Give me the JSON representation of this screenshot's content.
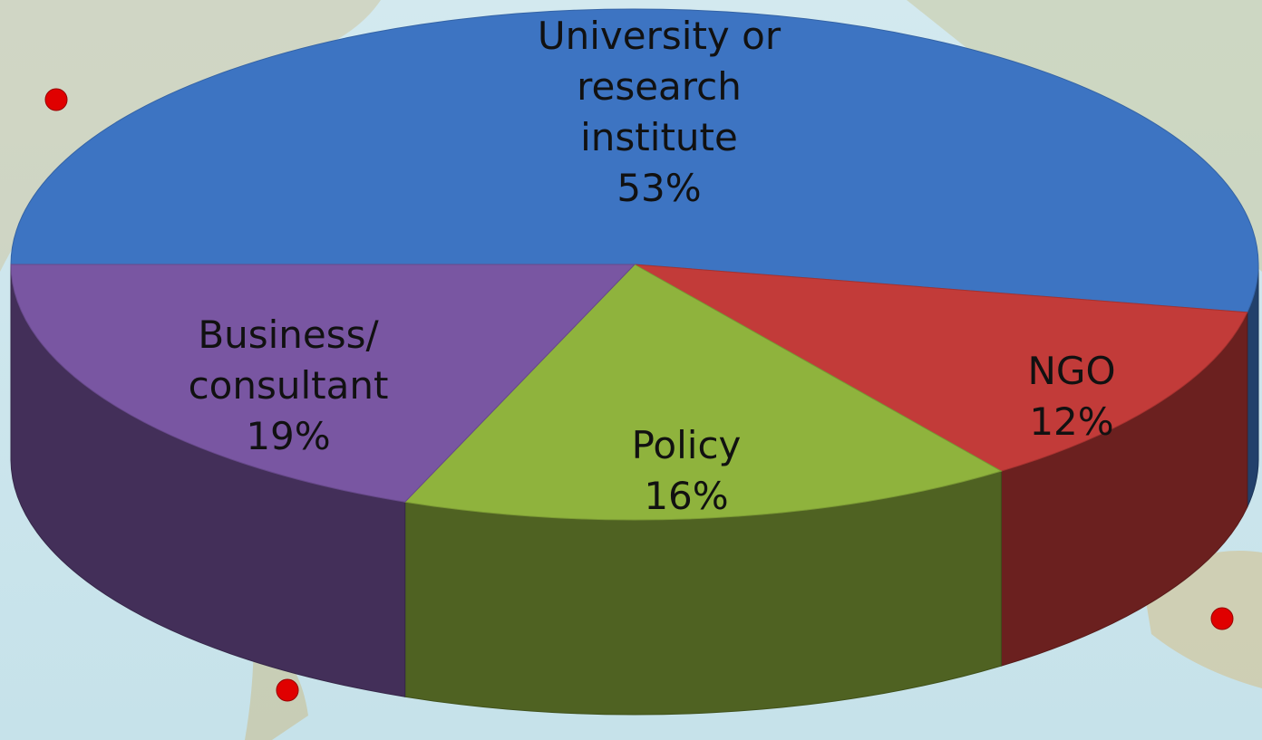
{
  "chart_data": {
    "type": "pie",
    "categories": [
      "University or research institute",
      "NGO",
      "Policy",
      "Business/ consultant"
    ],
    "values": [
      53,
      12,
      16,
      19
    ],
    "value_labels": [
      "53%",
      "12%",
      "16%",
      "19%"
    ],
    "colors": [
      "#3d74c2",
      "#c23b39",
      "#8fb33d",
      "#7956a2"
    ]
  }
}
